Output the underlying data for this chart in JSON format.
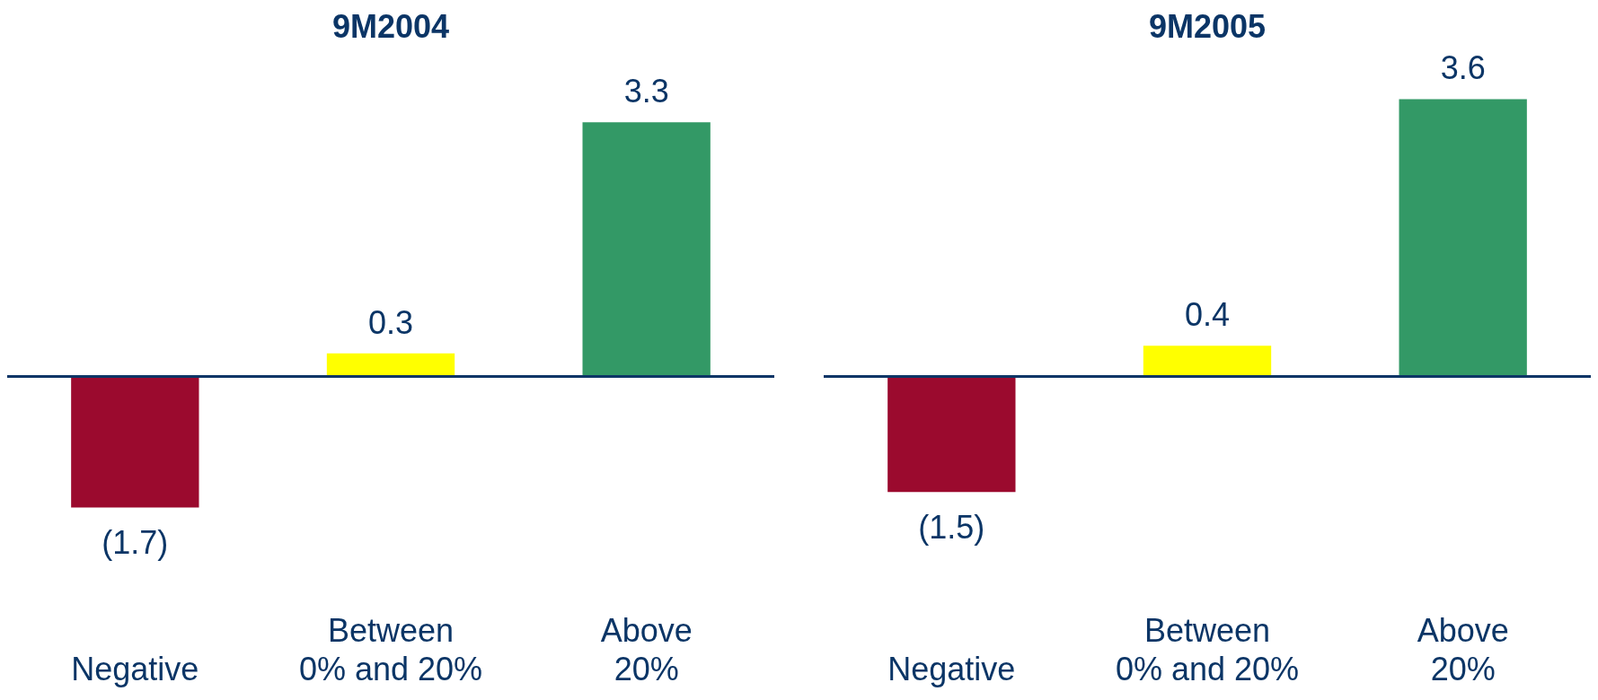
{
  "chart_data": [
    {
      "type": "bar",
      "title": "9M2004",
      "categories": [
        "Negative",
        "Between 0% and 20%",
        "Above 20%"
      ],
      "values": [
        -1.7,
        0.3,
        3.3
      ],
      "colors": [
        "#9b0a2e",
        "#ffff00",
        "#339966"
      ],
      "value_labels": [
        "(1.7)",
        "0.3",
        "3.3"
      ],
      "ref_lines": [
        {
          "axis": "y",
          "value": 0,
          "color": "#0b3566"
        }
      ]
    },
    {
      "type": "bar",
      "title": "9M2005",
      "categories": [
        "Negative",
        "Between 0% and 20%",
        "Above 20%"
      ],
      "values": [
        -1.5,
        0.4,
        3.6
      ],
      "colors": [
        "#9b0a2e",
        "#ffff00",
        "#339966"
      ],
      "value_labels": [
        "(1.5)",
        "0.4",
        "3.6"
      ],
      "ref_lines": [
        {
          "axis": "y",
          "value": 0,
          "color": "#0b3566"
        }
      ]
    }
  ]
}
